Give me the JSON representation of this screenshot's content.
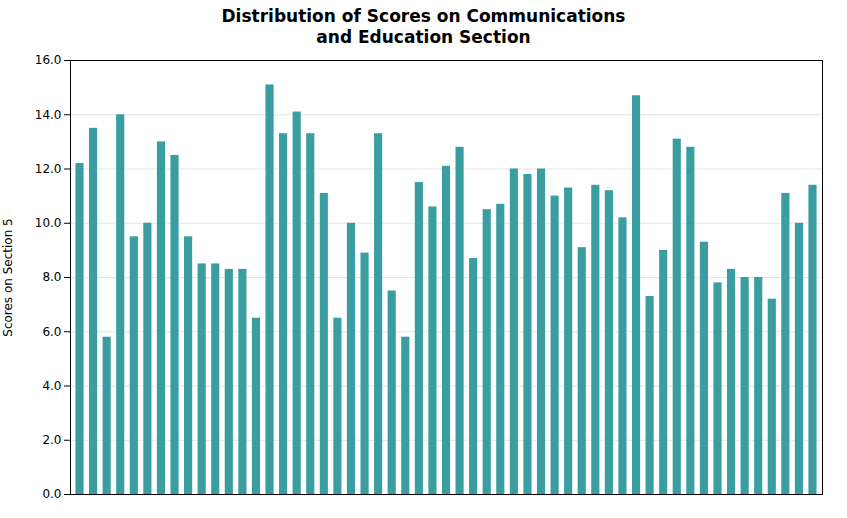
{
  "chart_data": {
    "type": "bar",
    "title": "Distribution of Scores on Communications\nand Education Section",
    "y_label": "Scores on Section 5",
    "categories": [
      null,
      null,
      null,
      null,
      null,
      null,
      null,
      null,
      null,
      null,
      null,
      null,
      null,
      null,
      null,
      null,
      null,
      null,
      null,
      null,
      null,
      null,
      null,
      null,
      null,
      null,
      null,
      null,
      null,
      null,
      null,
      null,
      null,
      null,
      null,
      null,
      null,
      null,
      null,
      null,
      null,
      null,
      null,
      null,
      null,
      null,
      null,
      null,
      null,
      null,
      null,
      null,
      null,
      null,
      null
    ],
    "values": [
      12.2,
      13.5,
      5.8,
      14.0,
      9.5,
      10.0,
      13.0,
      12.5,
      9.5,
      8.5,
      8.5,
      8.3,
      8.3,
      6.5,
      15.1,
      13.3,
      14.1,
      13.3,
      11.1,
      6.5,
      10.0,
      8.9,
      13.3,
      7.5,
      5.8,
      11.5,
      10.6,
      12.1,
      12.8,
      8.7,
      10.5,
      10.7,
      12.0,
      11.8,
      12.0,
      11.0,
      11.3,
      9.1,
      11.4,
      11.2,
      10.2,
      14.7,
      7.3,
      9.0,
      13.1,
      12.8,
      9.3,
      7.8,
      8.3,
      8.0,
      8.0,
      7.2,
      11.1,
      10.0,
      11.4
    ],
    "color": "#3a9ea0",
    "ylim": [
      0,
      16.0
    ],
    "yticks": [
      {
        "value": 0,
        "label": "0.0"
      },
      {
        "value": 2,
        "label": "2.0"
      },
      {
        "value": 4,
        "label": "4.0"
      },
      {
        "value": 6,
        "label": "6.0"
      },
      {
        "value": 8,
        "label": "8.0"
      },
      {
        "value": 10,
        "label": "10.0"
      },
      {
        "value": 12,
        "label": "12.0"
      },
      {
        "value": 14,
        "label": "14.0"
      },
      {
        "value": 16,
        "label": "16.0"
      }
    ],
    "grid": true,
    "tick_labels": "y"
  }
}
